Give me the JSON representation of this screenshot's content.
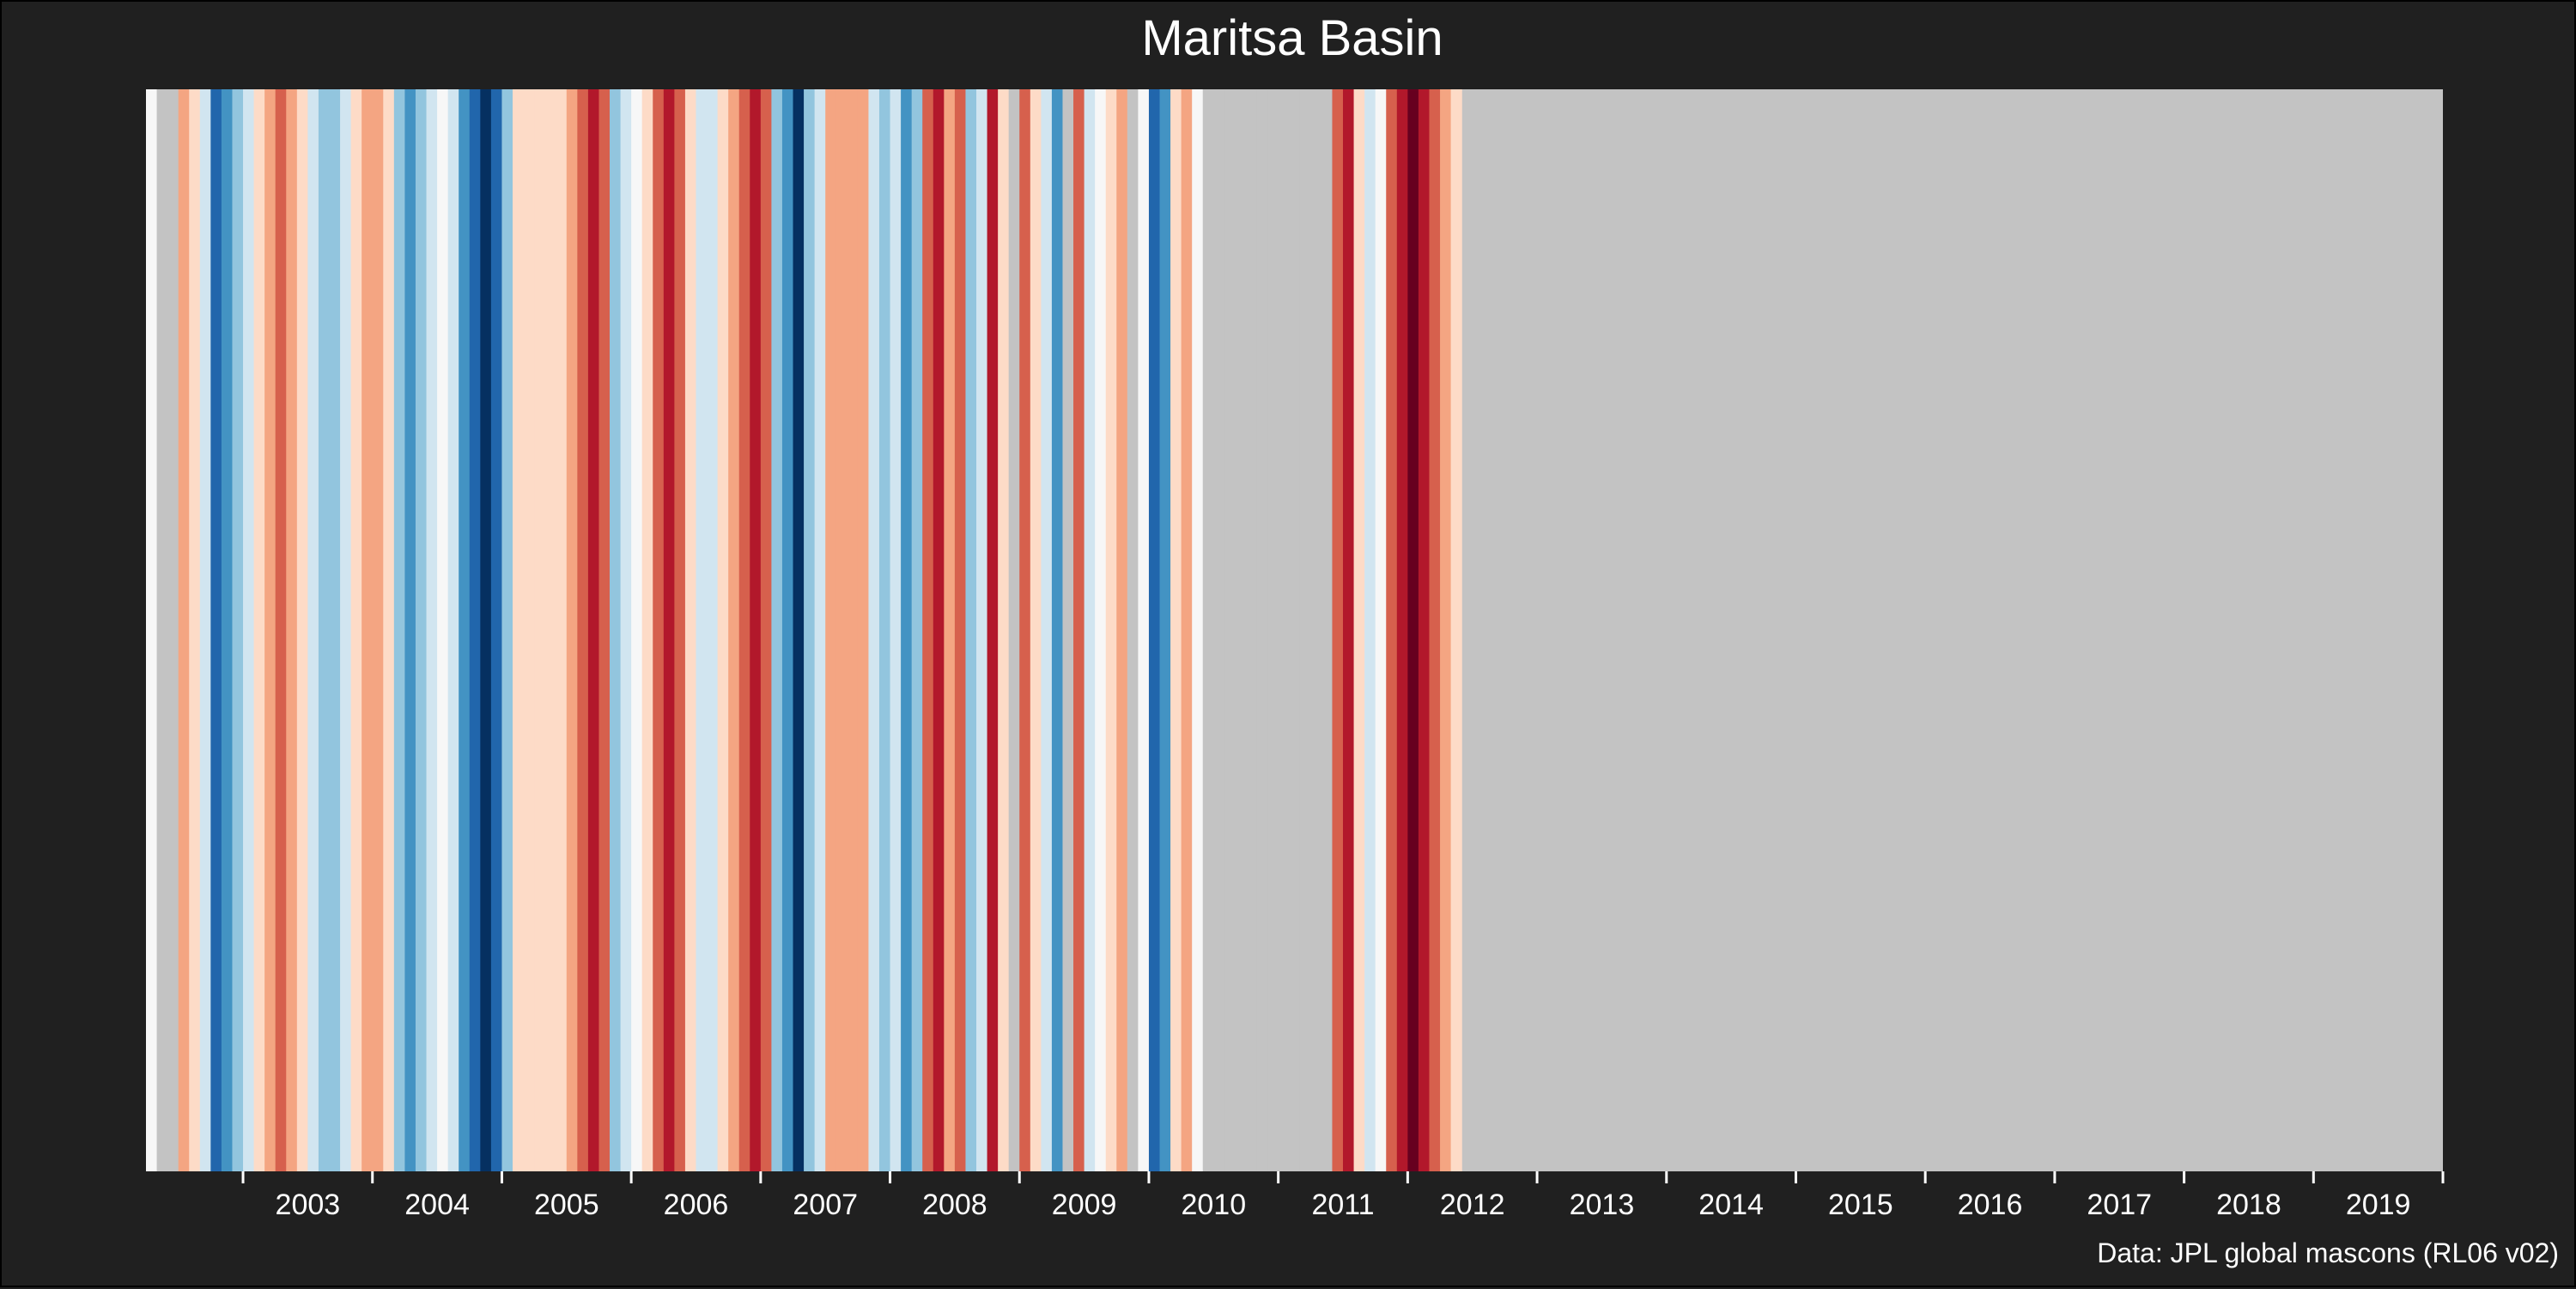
{
  "chart_data": {
    "type": "heatmap",
    "title": "Maritsa Basin",
    "caption": "Data: JPL global mascons (RL06 v02)",
    "xlabel": "",
    "ylabel": "",
    "x_tick_labels": [
      "2003",
      "2004",
      "2005",
      "2006",
      "2007",
      "2008",
      "2009",
      "2010",
      "2011",
      "2012",
      "2013",
      "2014",
      "2015",
      "2016",
      "2017",
      "2018",
      "2019"
    ],
    "x_range": [
      "2002-04",
      "2019-12"
    ],
    "grid": false,
    "legend": "none",
    "missing_color": "#c3c3c3",
    "stripes": [
      {
        "period": "2002-04",
        "color": "#f7f7f7"
      },
      {
        "period": "2002-05",
        "color": "#c3c3c3"
      },
      {
        "period": "2002-06",
        "color": "#c3c3c3"
      },
      {
        "period": "2002-07",
        "color": "#f4a582"
      },
      {
        "period": "2002-08",
        "color": "#fddbc7"
      },
      {
        "period": "2002-09",
        "color": "#d1e5f0"
      },
      {
        "period": "2002-10",
        "color": "#2166ac"
      },
      {
        "period": "2002-11",
        "color": "#4393c3"
      },
      {
        "period": "2002-12",
        "color": "#92c5de"
      },
      {
        "period": "2003-01",
        "color": "#d1e5f0"
      },
      {
        "period": "2003-02",
        "color": "#fddbc7"
      },
      {
        "period": "2003-03",
        "color": "#f4a582"
      },
      {
        "period": "2003-04",
        "color": "#d6604d"
      },
      {
        "period": "2003-05",
        "color": "#f4a582"
      },
      {
        "period": "2003-06",
        "color": "#fddbc7"
      },
      {
        "period": "2003-07",
        "color": "#d1e5f0"
      },
      {
        "period": "2003-08",
        "color": "#92c5de"
      },
      {
        "period": "2003-09",
        "color": "#92c5de"
      },
      {
        "period": "2003-10",
        "color": "#d1e5f0"
      },
      {
        "period": "2003-11",
        "color": "#fddbc7"
      },
      {
        "period": "2003-12",
        "color": "#f4a582"
      },
      {
        "period": "2004-01",
        "color": "#f4a582"
      },
      {
        "period": "2004-02",
        "color": "#fddbc7"
      },
      {
        "period": "2004-03",
        "color": "#92c5de"
      },
      {
        "period": "2004-04",
        "color": "#4393c3"
      },
      {
        "period": "2004-05",
        "color": "#92c5de"
      },
      {
        "period": "2004-06",
        "color": "#d1e5f0"
      },
      {
        "period": "2004-07",
        "color": "#f7f7f7"
      },
      {
        "period": "2004-08",
        "color": "#d1e5f0"
      },
      {
        "period": "2004-09",
        "color": "#4393c3"
      },
      {
        "period": "2004-10",
        "color": "#2166ac"
      },
      {
        "period": "2004-11",
        "color": "#053061"
      },
      {
        "period": "2004-12",
        "color": "#2166ac"
      },
      {
        "period": "2005-01",
        "color": "#92c5de"
      },
      {
        "period": "2005-02",
        "color": "#fddbc7"
      },
      {
        "period": "2005-03",
        "color": "#fddbc7"
      },
      {
        "period": "2005-04",
        "color": "#fddbc7"
      },
      {
        "period": "2005-05",
        "color": "#fddbc7"
      },
      {
        "period": "2005-06",
        "color": "#fddbc7"
      },
      {
        "period": "2005-07",
        "color": "#f4a582"
      },
      {
        "period": "2005-08",
        "color": "#d6604d"
      },
      {
        "period": "2005-09",
        "color": "#b2182b"
      },
      {
        "period": "2005-10",
        "color": "#d6604d"
      },
      {
        "period": "2005-11",
        "color": "#92c5de"
      },
      {
        "period": "2005-12",
        "color": "#d1e5f0"
      },
      {
        "period": "2006-01",
        "color": "#f7f7f7"
      },
      {
        "period": "2006-02",
        "color": "#fddbc7"
      },
      {
        "period": "2006-03",
        "color": "#d6604d"
      },
      {
        "period": "2006-04",
        "color": "#b2182b"
      },
      {
        "period": "2006-05",
        "color": "#d6604d"
      },
      {
        "period": "2006-06",
        "color": "#fddbc7"
      },
      {
        "period": "2006-07",
        "color": "#d1e5f0"
      },
      {
        "period": "2006-08",
        "color": "#d1e5f0"
      },
      {
        "period": "2006-09",
        "color": "#fddbc7"
      },
      {
        "period": "2006-10",
        "color": "#f4a582"
      },
      {
        "period": "2006-11",
        "color": "#d6604d"
      },
      {
        "period": "2006-12",
        "color": "#b2182b"
      },
      {
        "period": "2007-01",
        "color": "#d6604d"
      },
      {
        "period": "2007-02",
        "color": "#92c5de"
      },
      {
        "period": "2007-03",
        "color": "#4393c3"
      },
      {
        "period": "2007-04",
        "color": "#053061"
      },
      {
        "period": "2007-05",
        "color": "#92c5de"
      },
      {
        "period": "2007-06",
        "color": "#d1e5f0"
      },
      {
        "period": "2007-07",
        "color": "#f4a582"
      },
      {
        "period": "2007-08",
        "color": "#f4a582"
      },
      {
        "period": "2007-09",
        "color": "#f4a582"
      },
      {
        "period": "2007-10",
        "color": "#f4a582"
      },
      {
        "period": "2007-11",
        "color": "#d1e5f0"
      },
      {
        "period": "2007-12",
        "color": "#92c5de"
      },
      {
        "period": "2008-01",
        "color": "#d1e5f0"
      },
      {
        "period": "2008-02",
        "color": "#4393c3"
      },
      {
        "period": "2008-03",
        "color": "#92c5de"
      },
      {
        "period": "2008-04",
        "color": "#d6604d"
      },
      {
        "period": "2008-05",
        "color": "#b2182b"
      },
      {
        "period": "2008-06",
        "color": "#f4a582"
      },
      {
        "period": "2008-07",
        "color": "#d6604d"
      },
      {
        "period": "2008-08",
        "color": "#92c5de"
      },
      {
        "period": "2008-09",
        "color": "#d1e5f0"
      },
      {
        "period": "2008-10",
        "color": "#b2182b"
      },
      {
        "period": "2008-11",
        "color": "#fddbc7"
      },
      {
        "period": "2008-12",
        "color": "#c3c3c3"
      },
      {
        "period": "2009-01",
        "color": "#d6604d"
      },
      {
        "period": "2009-02",
        "color": "#fddbc7"
      },
      {
        "period": "2009-03",
        "color": "#d1e5f0"
      },
      {
        "period": "2009-04",
        "color": "#4393c3"
      },
      {
        "period": "2009-05",
        "color": "#c3c3c3"
      },
      {
        "period": "2009-06",
        "color": "#d6604d"
      },
      {
        "period": "2009-07",
        "color": "#d1e5f0"
      },
      {
        "period": "2009-08",
        "color": "#f7f7f7"
      },
      {
        "period": "2009-09",
        "color": "#fddbc7"
      },
      {
        "period": "2009-10",
        "color": "#f4a582"
      },
      {
        "period": "2009-11",
        "color": "#c3c3c3"
      },
      {
        "period": "2009-12",
        "color": "#f7f7f7"
      },
      {
        "period": "2010-01",
        "color": "#2166ac"
      },
      {
        "period": "2010-02",
        "color": "#4393c3"
      },
      {
        "period": "2010-03",
        "color": "#fddbc7"
      },
      {
        "period": "2010-04",
        "color": "#f4a582"
      },
      {
        "period": "2010-05",
        "color": "#f7f7f7"
      },
      {
        "period": "2010-06",
        "color": "#c3c3c3"
      },
      {
        "period": "2010-07",
        "color": "#c3c3c3"
      },
      {
        "period": "2010-08",
        "color": "#c3c3c3"
      },
      {
        "period": "2010-09",
        "color": "#c3c3c3"
      },
      {
        "period": "2010-10",
        "color": "#c3c3c3"
      },
      {
        "period": "2010-11",
        "color": "#c3c3c3"
      },
      {
        "period": "2010-12",
        "color": "#c3c3c3"
      },
      {
        "period": "2011-01",
        "color": "#c3c3c3"
      },
      {
        "period": "2011-02",
        "color": "#c3c3c3"
      },
      {
        "period": "2011-03",
        "color": "#c3c3c3"
      },
      {
        "period": "2011-04",
        "color": "#c3c3c3"
      },
      {
        "period": "2011-05",
        "color": "#c3c3c3"
      },
      {
        "period": "2011-06",
        "color": "#d6604d"
      },
      {
        "period": "2011-07",
        "color": "#b2182b"
      },
      {
        "period": "2011-08",
        "color": "#fddbc7"
      },
      {
        "period": "2011-09",
        "color": "#d1e5f0"
      },
      {
        "period": "2011-10",
        "color": "#f7f7f7"
      },
      {
        "period": "2011-11",
        "color": "#d6604d"
      },
      {
        "period": "2011-12",
        "color": "#b2182b"
      },
      {
        "period": "2012-01",
        "color": "#67001f"
      },
      {
        "period": "2012-02",
        "color": "#b2182b"
      },
      {
        "period": "2012-03",
        "color": "#d6604d"
      },
      {
        "period": "2012-04",
        "color": "#f4a582"
      },
      {
        "period": "2012-05",
        "color": "#fddbc7"
      }
    ]
  }
}
